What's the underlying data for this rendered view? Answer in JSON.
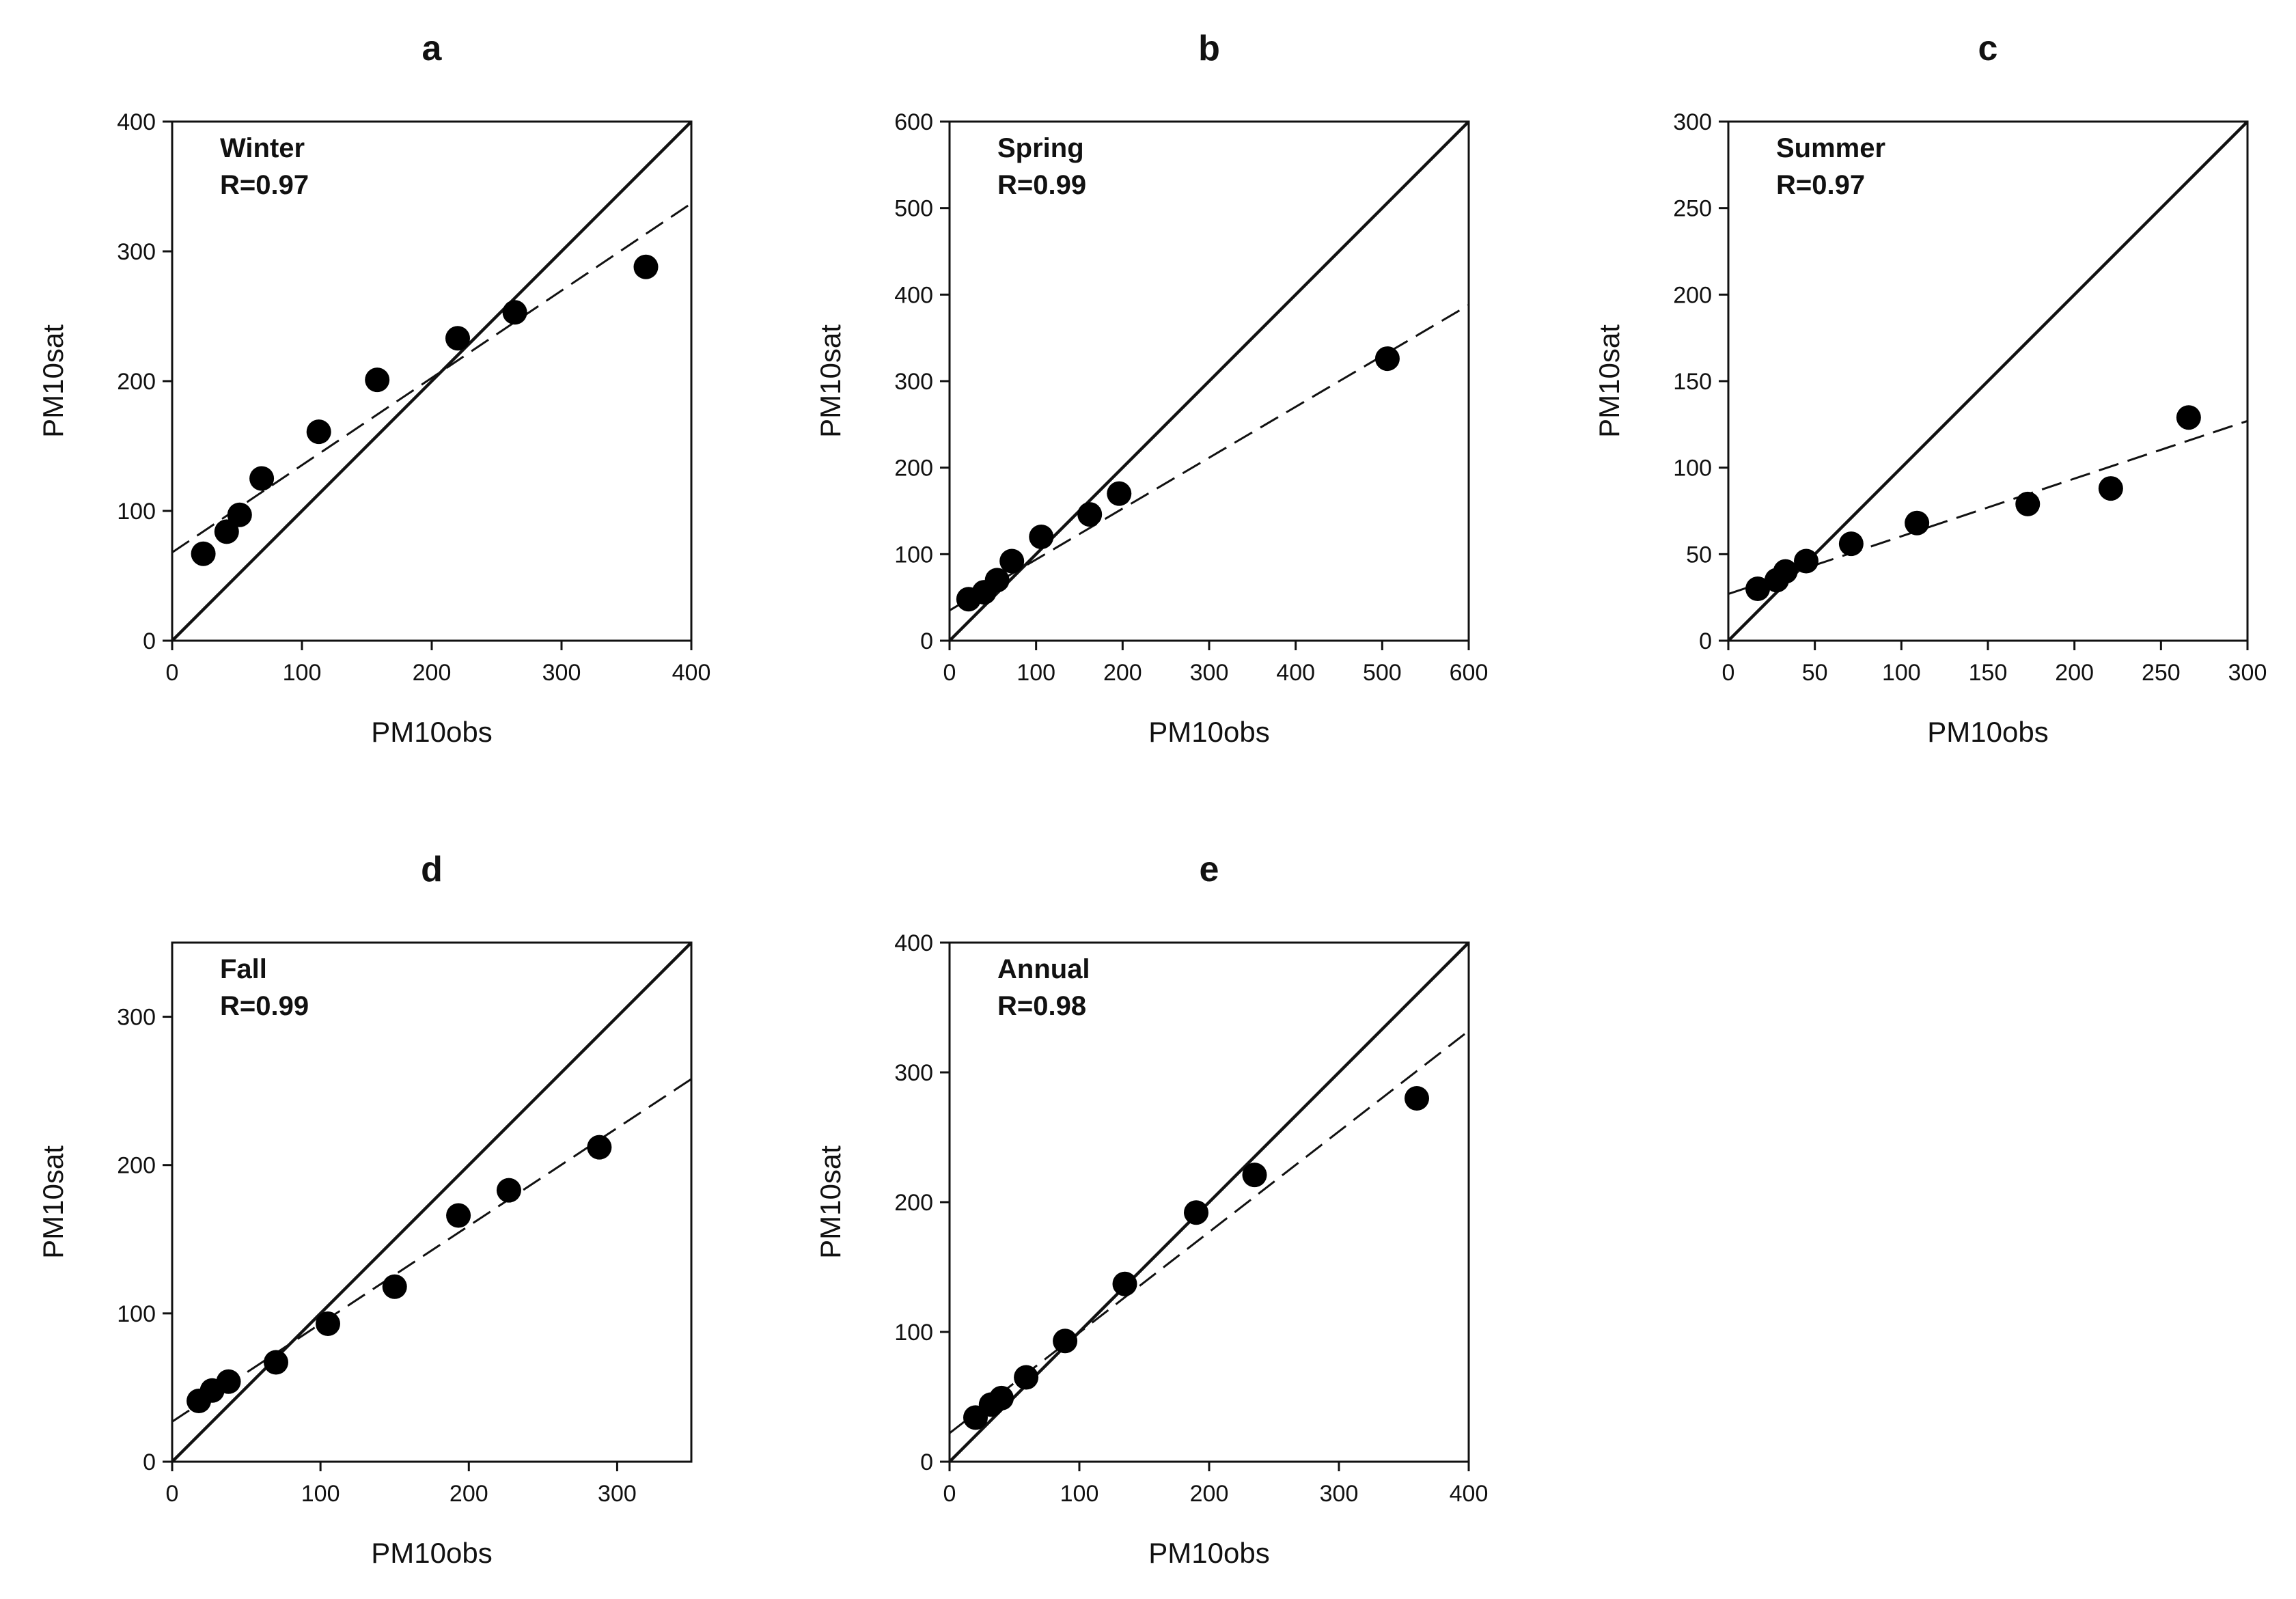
{
  "chart_data": [
    {
      "panel": "a",
      "type": "scatter",
      "label": "Winter",
      "stat": "R=0.97",
      "xlabel": "PM10obs",
      "ylabel": "PM10sat",
      "xlim": [
        0,
        400
      ],
      "ylim": [
        0,
        400
      ],
      "xticks": [
        0,
        100,
        200,
        300,
        400
      ],
      "yticks": [
        0,
        100,
        200,
        300,
        400
      ],
      "x": [
        24,
        42,
        52,
        69,
        113,
        158,
        220,
        264,
        365
      ],
      "y": [
        67,
        84,
        97,
        125,
        161,
        201,
        233,
        253,
        288
      ],
      "identity_line": true,
      "fit_line": {
        "x": [
          0,
          400
        ],
        "y": [
          68,
          337
        ]
      }
    },
    {
      "panel": "b",
      "type": "scatter",
      "label": "Spring",
      "stat": "R=0.99",
      "xlabel": "PM10obs",
      "ylabel": "PM10sat",
      "xlim": [
        0,
        600
      ],
      "ylim": [
        0,
        600
      ],
      "xticks": [
        0,
        100,
        200,
        300,
        400,
        500,
        600
      ],
      "yticks": [
        0,
        100,
        200,
        300,
        400,
        500,
        600
      ],
      "x": [
        22,
        40,
        55,
        72,
        106,
        162,
        196,
        506
      ],
      "y": [
        48,
        56,
        70,
        92,
        120,
        146,
        170,
        326
      ],
      "identity_line": true,
      "fit_line": {
        "x": [
          0,
          600
        ],
        "y": [
          35,
          388
        ]
      }
    },
    {
      "panel": "c",
      "type": "scatter",
      "label": "Summer",
      "stat": "R=0.97",
      "xlabel": "PM10obs",
      "ylabel": "PM10sat",
      "xlim": [
        0,
        300
      ],
      "ylim": [
        0,
        300
      ],
      "xticks": [
        0,
        50,
        100,
        150,
        200,
        250,
        300
      ],
      "yticks": [
        0,
        50,
        100,
        150,
        200,
        250,
        300
      ],
      "x": [
        17,
        28,
        33,
        45,
        71,
        109,
        173,
        221,
        266
      ],
      "y": [
        30,
        35,
        40,
        46,
        56,
        68,
        79,
        88,
        129
      ],
      "identity_line": true,
      "fit_line": {
        "x": [
          0,
          300
        ],
        "y": [
          27,
          127
        ]
      }
    },
    {
      "panel": "d",
      "type": "scatter",
      "label": "Fall",
      "stat": "R=0.99",
      "xlabel": "PM10obs",
      "ylabel": "PM10sat",
      "xlim": [
        0,
        350
      ],
      "ylim": [
        0,
        350
      ],
      "xticks": [
        0,
        100,
        200,
        300
      ],
      "yticks": [
        0,
        100,
        200,
        300
      ],
      "x": [
        18,
        27,
        38,
        70,
        105,
        150,
        193,
        227,
        288
      ],
      "y": [
        41,
        48,
        54,
        67,
        93,
        118,
        166,
        183,
        212
      ],
      "identity_line": true,
      "fit_line": {
        "x": [
          0,
          350
        ],
        "y": [
          27,
          258
        ]
      }
    },
    {
      "panel": "e",
      "type": "scatter",
      "label": "Annual",
      "stat": "R=0.98",
      "xlabel": "PM10obs",
      "ylabel": "PM10sat",
      "xlim": [
        0,
        400
      ],
      "ylim": [
        0,
        400
      ],
      "xticks": [
        0,
        100,
        200,
        300,
        400
      ],
      "yticks": [
        0,
        100,
        200,
        300,
        400
      ],
      "x": [
        20,
        32,
        40,
        59,
        89,
        135,
        190,
        235,
        360
      ],
      "y": [
        34,
        44,
        49,
        65,
        93,
        137,
        192,
        221,
        280
      ],
      "identity_line": true,
      "fit_line": {
        "x": [
          0,
          400
        ],
        "y": [
          22,
          332
        ]
      }
    }
  ]
}
